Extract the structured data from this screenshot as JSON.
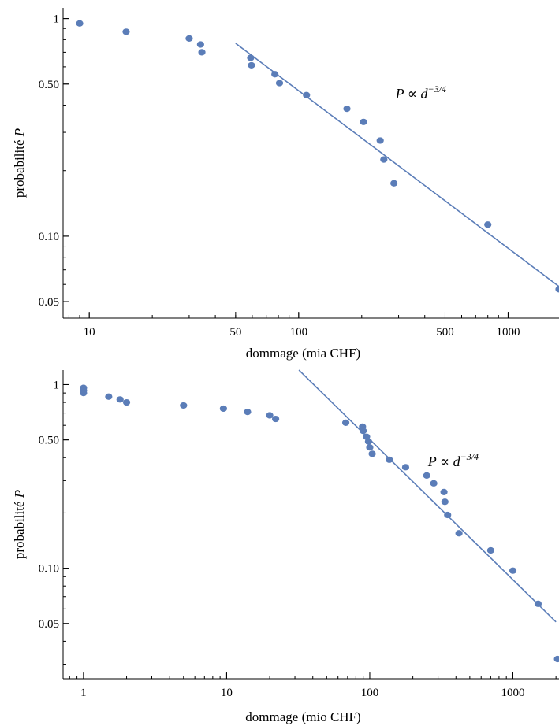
{
  "colors": {
    "marker": "#5b7db8",
    "fit_line": "#5b7db8",
    "axis": "#000000"
  },
  "chart_data": [
    {
      "type": "scatter",
      "scale": "log-log",
      "xlabel": "dommage (mia CHF)",
      "ylabel_prefix": "probabilité",
      "ylabel_var": "P",
      "xlim": [
        7.5,
        1750
      ],
      "ylim": [
        0.042,
        1.12
      ],
      "x_ticks": [
        {
          "value": 10,
          "label": "10"
        },
        {
          "value": 50,
          "label": "50"
        },
        {
          "value": 100,
          "label": "100"
        },
        {
          "value": 500,
          "label": "500"
        },
        {
          "value": 1000,
          "label": "1000"
        }
      ],
      "y_ticks": [
        {
          "value": 0.05,
          "label": "0.05"
        },
        {
          "value": 0.1,
          "label": "0.10"
        },
        {
          "value": 0.5,
          "label": "0.50"
        },
        {
          "value": 1,
          "label": "1"
        }
      ],
      "points": [
        {
          "x": 9,
          "y": 0.95
        },
        {
          "x": 15,
          "y": 0.87
        },
        {
          "x": 30,
          "y": 0.81
        },
        {
          "x": 34,
          "y": 0.76
        },
        {
          "x": 34.5,
          "y": 0.7
        },
        {
          "x": 59,
          "y": 0.66
        },
        {
          "x": 59.5,
          "y": 0.61
        },
        {
          "x": 77,
          "y": 0.555
        },
        {
          "x": 81,
          "y": 0.505
        },
        {
          "x": 109,
          "y": 0.445
        },
        {
          "x": 170,
          "y": 0.385
        },
        {
          "x": 204,
          "y": 0.335
        },
        {
          "x": 245,
          "y": 0.275
        },
        {
          "x": 255,
          "y": 0.225
        },
        {
          "x": 285,
          "y": 0.175
        },
        {
          "x": 800,
          "y": 0.113
        },
        {
          "x": 1750,
          "y": 0.057
        }
      ],
      "fit_line": {
        "x": [
          50,
          1750
        ],
        "y": [
          0.77,
          0.0587
        ]
      },
      "annotation": {
        "base": "P ∝ d",
        "exponent": "−3/4",
        "at": {
          "x": 290,
          "y": 0.43
        }
      }
    },
    {
      "type": "scatter",
      "scale": "log-log",
      "xlabel": "dommage (mio CHF)",
      "ylabel_prefix": "probabilité",
      "ylabel_var": "P",
      "xlim": [
        0.72,
        2100
      ],
      "ylim": [
        0.025,
        1.2
      ],
      "x_ticks": [
        {
          "value": 1,
          "label": "1"
        },
        {
          "value": 10,
          "label": "10"
        },
        {
          "value": 100,
          "label": "100"
        },
        {
          "value": 1000,
          "label": "1000"
        }
      ],
      "y_ticks": [
        {
          "value": 0.05,
          "label": "0.05"
        },
        {
          "value": 0.1,
          "label": "0.10"
        },
        {
          "value": 0.5,
          "label": "0.50"
        },
        {
          "value": 1,
          "label": "1"
        }
      ],
      "points": [
        {
          "x": 1,
          "y": 0.96
        },
        {
          "x": 1,
          "y": 0.93
        },
        {
          "x": 1,
          "y": 0.9
        },
        {
          "x": 1.5,
          "y": 0.86
        },
        {
          "x": 1.8,
          "y": 0.83
        },
        {
          "x": 2,
          "y": 0.8
        },
        {
          "x": 5,
          "y": 0.77
        },
        {
          "x": 9.5,
          "y": 0.74
        },
        {
          "x": 14,
          "y": 0.71
        },
        {
          "x": 20,
          "y": 0.68
        },
        {
          "x": 22,
          "y": 0.65
        },
        {
          "x": 68,
          "y": 0.62
        },
        {
          "x": 89,
          "y": 0.59
        },
        {
          "x": 90,
          "y": 0.56
        },
        {
          "x": 95,
          "y": 0.52
        },
        {
          "x": 98,
          "y": 0.49
        },
        {
          "x": 100,
          "y": 0.455
        },
        {
          "x": 104,
          "y": 0.42
        },
        {
          "x": 137,
          "y": 0.39
        },
        {
          "x": 178,
          "y": 0.355
        },
        {
          "x": 250,
          "y": 0.32
        },
        {
          "x": 280,
          "y": 0.29
        },
        {
          "x": 330,
          "y": 0.26
        },
        {
          "x": 335,
          "y": 0.23
        },
        {
          "x": 350,
          "y": 0.195
        },
        {
          "x": 420,
          "y": 0.155
        },
        {
          "x": 700,
          "y": 0.125
        },
        {
          "x": 1000,
          "y": 0.097
        },
        {
          "x": 1500,
          "y": 0.064
        },
        {
          "x": 2050,
          "y": 0.032
        }
      ],
      "fit_line": {
        "x": [
          32,
          2000
        ],
        "y": [
          1.2,
          0.051
        ]
      },
      "annotation": {
        "base": "P ∝ d",
        "exponent": "−3/4",
        "at": {
          "x": 255,
          "y": 0.36
        }
      }
    }
  ]
}
